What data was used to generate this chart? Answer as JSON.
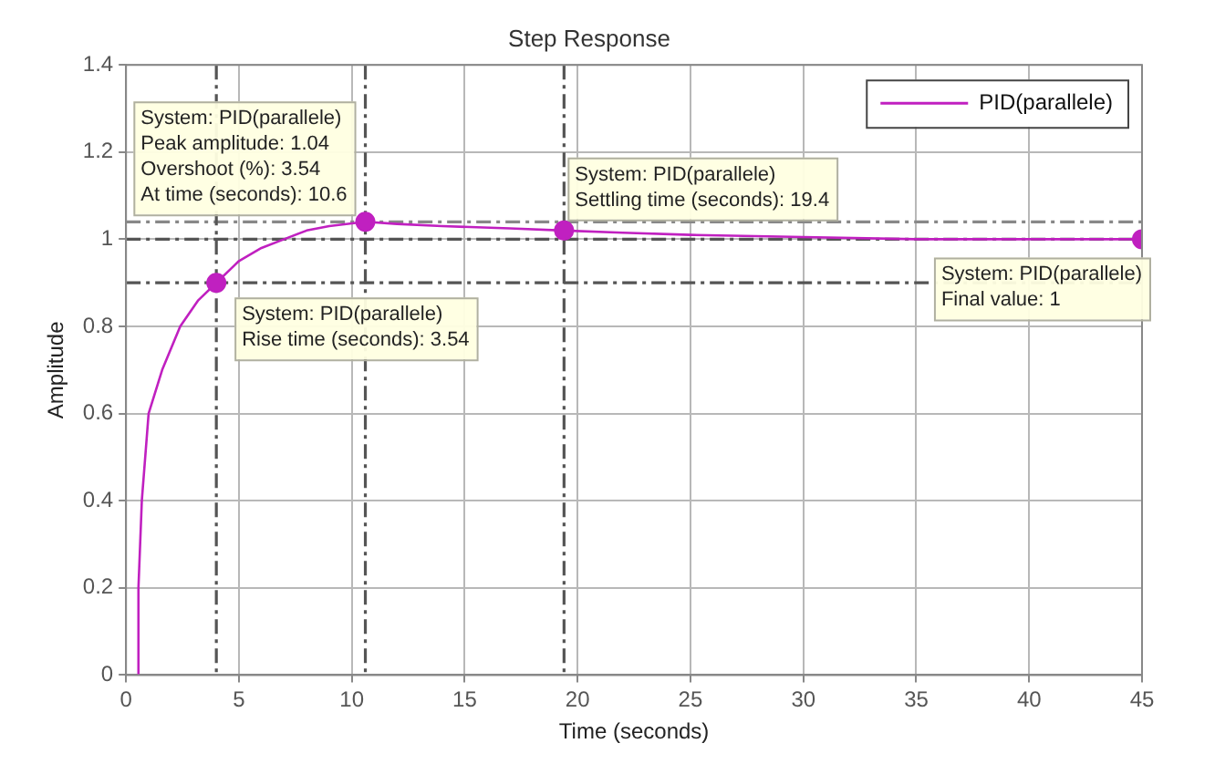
{
  "chart_data": {
    "type": "line",
    "title": "Step Response",
    "xlabel": "Time (seconds)",
    "ylabel": "Amplitude",
    "xlim": [
      0,
      45
    ],
    "xticks": [
      0,
      5,
      10,
      15,
      20,
      25,
      30,
      35,
      40,
      45
    ],
    "ylim": [
      0,
      1.4
    ],
    "yticks": [
      0,
      0.2,
      0.4,
      0.6,
      0.8,
      1,
      1.2,
      1.4
    ],
    "grid": true,
    "legend": "top right",
    "line_style": "solid",
    "series": [
      {
        "name": "PID(parallele)",
        "marker": "none",
        "color": "#c020c0",
        "x": [
          0.5,
          0.55,
          0.7,
          1.0,
          1.6,
          2.4,
          3.2,
          4.0,
          5,
          6,
          7,
          8,
          9,
          10.6,
          12,
          14,
          17,
          19.4,
          22,
          25,
          30,
          35,
          40,
          45
        ],
        "values": [
          0,
          0.2,
          0.4,
          0.6,
          0.7,
          0.8,
          0.86,
          0.9,
          0.95,
          0.98,
          1.0,
          1.02,
          1.03,
          1.04,
          1.035,
          1.03,
          1.025,
          1.02,
          1.015,
          1.01,
          1.005,
          1.0,
          1.0,
          1.0
        ]
      },
      {
        "type": "scatter",
        "marker": "circle",
        "color": "#c020c0",
        "x": [
          4.0,
          10.6,
          19.4,
          45
        ],
        "values": [
          0.9,
          1.04,
          1.02,
          1
        ]
      }
    ],
    "ref_lines": [
      {
        "axis": "y",
        "value": 1.04,
        "color": "#888888",
        "line_style": "dashed"
      },
      {
        "axis": "y",
        "value": 1,
        "color": "#555555",
        "line_style": "dashed"
      },
      {
        "axis": "y",
        "value": 0.9,
        "color": "#555555",
        "line_style": "dashed"
      },
      {
        "axis": "x",
        "value": 4.0,
        "color": "#555555",
        "line_style": "dashed"
      },
      {
        "axis": "x",
        "value": 10.6,
        "color": "#555555",
        "line_style": "dashed"
      },
      {
        "axis": "x",
        "value": 19.4,
        "color": "#555555",
        "line_style": "dashed"
      }
    ],
    "annotations": [
      {
        "text": "System: PID(parallele)\nPeak amplitude: 1.04\nOvershoot (%): 3.54\nAt time (seconds): 10.6",
        "x": 10.6,
        "y": 1.04
      },
      {
        "text": "System: PID(parallele)\nRise time (seconds): 3.54",
        "x": 4.0,
        "y": 0.9
      },
      {
        "text": "System: PID(parallele)\nSettling time (seconds): 19.4",
        "x": 19.4,
        "y": 1.02
      },
      {
        "text": "System: PID(parallele)\nFinal value: 1",
        "x": 45,
        "y": 1
      }
    ]
  }
}
